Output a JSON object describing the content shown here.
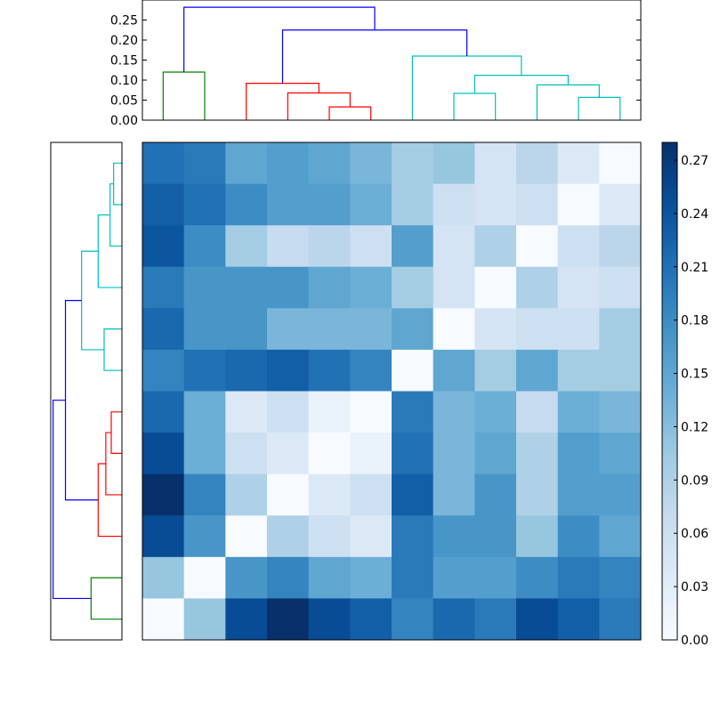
{
  "chart_data": [
    {
      "type": "dendrogram",
      "orientation": "top",
      "title": "",
      "xlabel": "",
      "ylabel": "",
      "ylim": [
        0,
        0.3
      ],
      "yticks": [
        "0.00",
        "0.05",
        "0.10",
        "0.15",
        "0.20",
        "0.25"
      ],
      "leaf_count": 12,
      "links": [
        {
          "x1": 0.5,
          "x2": 1.5,
          "height": 0.12,
          "color": "#008000"
        },
        {
          "x1": 4.5,
          "x2": 5.5,
          "height": 0.033,
          "color": "#ff0000"
        },
        {
          "x1": 3.5,
          "x2": 5.0,
          "height": 0.068,
          "color": "#ff0000"
        },
        {
          "x1": 2.5,
          "x2": 4.25,
          "height": 0.092,
          "color": "#ff0000"
        },
        {
          "x1": 7.5,
          "x2": 8.5,
          "height": 0.067,
          "color": "#00bfbf"
        },
        {
          "x1": 10.5,
          "x2": 11.5,
          "height": 0.057,
          "color": "#00bfbf"
        },
        {
          "x1": 9.5,
          "x2": 11.0,
          "height": 0.088,
          "color": "#00bfbf"
        },
        {
          "x1": 8.0,
          "x2": 10.25,
          "height": 0.112,
          "color": "#00bfbf"
        },
        {
          "x1": 6.5,
          "x2": 9.125,
          "height": 0.16,
          "color": "#00bfbf"
        },
        {
          "x1": 3.375,
          "x2": 7.8125,
          "height": 0.225,
          "color": "#0000ff"
        },
        {
          "x1": 1.0,
          "x2": 5.59375,
          "height": 0.282,
          "color": "#0000ff"
        }
      ]
    },
    {
      "type": "dendrogram",
      "orientation": "left",
      "title": "",
      "leaf_count": 12,
      "xlim": [
        0,
        0.3
      ],
      "links": [
        {
          "y1": 0.5,
          "y2": 1.5,
          "height": 0.035,
          "color": "#00bfbf"
        },
        {
          "y1": 1.0,
          "y2": 2.5,
          "height": 0.05,
          "color": "#00bfbf"
        },
        {
          "y1": 1.75,
          "y2": 3.5,
          "height": 0.1,
          "color": "#00bfbf"
        },
        {
          "y1": 4.5,
          "y2": 5.5,
          "height": 0.075,
          "color": "#00bfbf"
        },
        {
          "y1": 2.625,
          "y2": 5.0,
          "height": 0.17,
          "color": "#00bfbf"
        },
        {
          "y1": 6.5,
          "y2": 7.5,
          "height": 0.045,
          "color": "#ff0000"
        },
        {
          "y1": 7.0,
          "y2": 8.5,
          "height": 0.068,
          "color": "#ff0000"
        },
        {
          "y1": 7.75,
          "y2": 9.5,
          "height": 0.1,
          "color": "#ff0000"
        },
        {
          "y1": 3.8125,
          "y2": 8.625,
          "height": 0.238,
          "color": "#0000ff"
        },
        {
          "y1": 10.5,
          "y2": 11.5,
          "height": 0.13,
          "color": "#008000"
        },
        {
          "y1": 6.21875,
          "y2": 11.0,
          "height": 0.29,
          "color": "#0000ff"
        }
      ]
    },
    {
      "type": "heatmap",
      "title": "",
      "rows": 12,
      "cols": 12,
      "colormap": "Blues",
      "colorbar": {
        "vmin": 0.0,
        "vmax": 0.28,
        "ticks": [
          "0.00",
          "0.03",
          "0.06",
          "0.09",
          "0.12",
          "0.15",
          "0.18",
          "0.21",
          "0.24",
          "0.27"
        ]
      },
      "values": [
        [
          0.21,
          0.2,
          0.15,
          0.16,
          0.15,
          0.13,
          0.1,
          0.11,
          0.05,
          0.08,
          0.04,
          0.0
        ],
        [
          0.23,
          0.21,
          0.18,
          0.16,
          0.16,
          0.14,
          0.1,
          0.06,
          0.05,
          0.06,
          0.0,
          0.04
        ],
        [
          0.24,
          0.18,
          0.1,
          0.07,
          0.08,
          0.06,
          0.16,
          0.05,
          0.09,
          0.0,
          0.06,
          0.08
        ],
        [
          0.2,
          0.17,
          0.17,
          0.17,
          0.15,
          0.14,
          0.1,
          0.05,
          0.0,
          0.09,
          0.05,
          0.06
        ],
        [
          0.22,
          0.17,
          0.17,
          0.13,
          0.13,
          0.13,
          0.15,
          0.0,
          0.05,
          0.06,
          0.06,
          0.1
        ],
        [
          0.19,
          0.21,
          0.22,
          0.23,
          0.21,
          0.19,
          0.0,
          0.15,
          0.1,
          0.15,
          0.1,
          0.1
        ],
        [
          0.22,
          0.14,
          0.04,
          0.06,
          0.02,
          0.0,
          0.2,
          0.13,
          0.14,
          0.07,
          0.14,
          0.13
        ],
        [
          0.25,
          0.14,
          0.06,
          0.04,
          0.0,
          0.02,
          0.21,
          0.13,
          0.15,
          0.09,
          0.16,
          0.15
        ],
        [
          0.28,
          0.19,
          0.09,
          0.0,
          0.04,
          0.06,
          0.23,
          0.13,
          0.17,
          0.09,
          0.16,
          0.16
        ],
        [
          0.25,
          0.17,
          0.0,
          0.09,
          0.06,
          0.04,
          0.2,
          0.17,
          0.17,
          0.11,
          0.18,
          0.15
        ],
        [
          0.11,
          0.0,
          0.17,
          0.19,
          0.15,
          0.14,
          0.2,
          0.16,
          0.16,
          0.18,
          0.2,
          0.19
        ],
        [
          0.0,
          0.11,
          0.25,
          0.28,
          0.25,
          0.23,
          0.19,
          0.22,
          0.2,
          0.25,
          0.23,
          0.2
        ]
      ]
    }
  ]
}
